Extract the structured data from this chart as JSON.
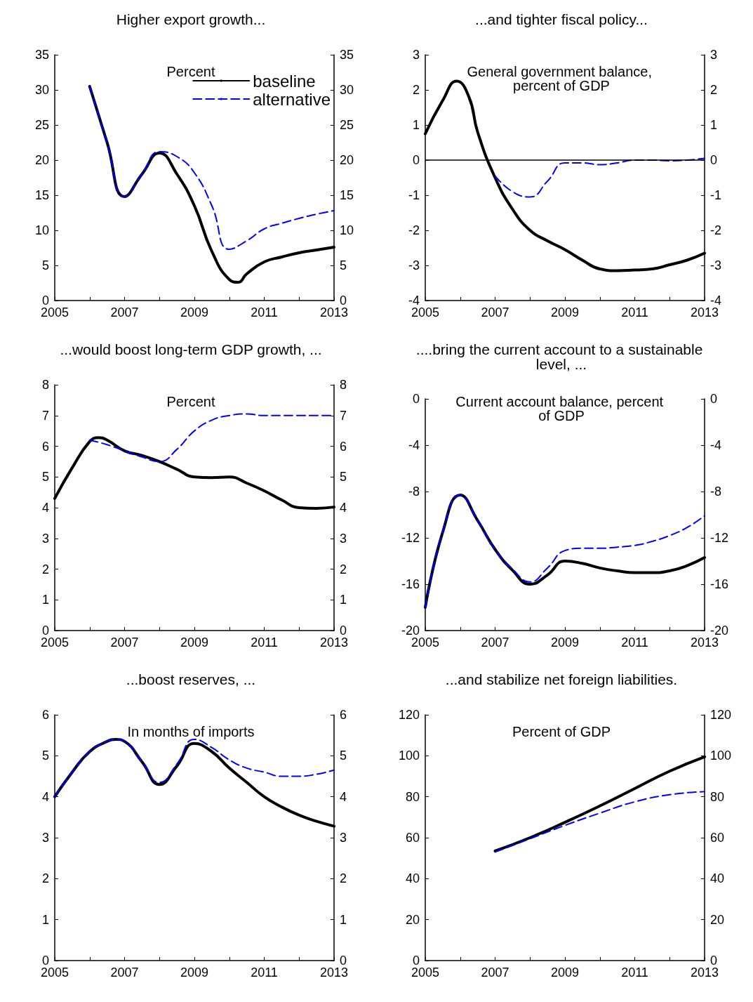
{
  "chart_data": [
    {
      "type": "line",
      "title": "Higher export growth...",
      "annotations": [
        "Percent"
      ],
      "legend": "top right",
      "grid": false,
      "xlim": [
        2005,
        2013
      ],
      "xticks": [
        2005,
        {
          "value": 2006,
          "label": null
        },
        2007,
        {
          "value": 2008,
          "label": null
        },
        2009,
        {
          "value": 2010,
          "label": null
        },
        2011,
        {
          "value": 2012,
          "label": null
        },
        2013
      ],
      "ylim": [
        0,
        35
      ],
      "yticks": [
        0,
        5,
        10,
        15,
        20,
        25,
        30,
        35
      ],
      "y2lim": [
        0,
        35
      ],
      "y2ticks": [
        0,
        5,
        10,
        15,
        20,
        25,
        30,
        35
      ],
      "series": [
        {
          "name": "baseline",
          "color": "#000000",
          "line_style": "solid",
          "x": [
            2006,
            2006.5,
            2007,
            2007.5,
            2008,
            2008.5,
            2009,
            2009.5,
            2010,
            2010.25,
            2010.5,
            2011,
            2011.5,
            2012,
            2012.5,
            2013
          ],
          "values": [
            30.5,
            22.5,
            14.8,
            18,
            21,
            18,
            13.5,
            7,
            3,
            2.6,
            3.8,
            5.5,
            6.2,
            6.8,
            7.2,
            7.6
          ]
        },
        {
          "name": "alternative",
          "color": "#0000ff",
          "line_style": "dashed",
          "x": [
            2006,
            2006.5,
            2007,
            2007.5,
            2008,
            2008.5,
            2009,
            2009.5,
            2010,
            2010.5,
            2011,
            2011.5,
            2012,
            2012.5,
            2013
          ],
          "values": [
            30.5,
            22.5,
            14.8,
            18,
            21.2,
            20.5,
            18.2,
            13.5,
            7.3,
            8.5,
            10.2,
            11,
            11.7,
            12.3,
            12.8
          ]
        }
      ]
    },
    {
      "type": "line",
      "title": "...and tighter fiscal policy...",
      "annotations": [
        "General government balance, percent of GDP"
      ],
      "grid": false,
      "xlim": [
        2005,
        2013
      ],
      "xticks": [
        2005,
        {
          "value": 2006,
          "label": null
        },
        2007,
        {
          "value": 2008,
          "label": null
        },
        2009,
        {
          "value": 2010,
          "label": null
        },
        2011,
        {
          "value": 2012,
          "label": null
        },
        2013
      ],
      "ylim": [
        -4,
        3
      ],
      "yticks": [
        -4,
        -3,
        -2,
        -1,
        0,
        1,
        2,
        3
      ],
      "y2lim": [
        -4,
        3
      ],
      "y2ticks": [
        -4,
        -3,
        -2,
        -1,
        0,
        1,
        2,
        3
      ],
      "ref_lines": [
        {
          "axis": "y",
          "value": 0,
          "color": "#000000"
        }
      ],
      "series": [
        {
          "color": "#000000",
          "line_style": "solid",
          "x": [
            2005,
            2005.5,
            2005.9,
            2006.25,
            2006.5,
            2007,
            2007.5,
            2008,
            2008.5,
            2009,
            2009.5,
            2010,
            2010.5,
            2011,
            2011.5,
            2012,
            2012.5,
            2013
          ],
          "values": [
            0.75,
            1.7,
            2.25,
            1.8,
            0.8,
            -0.5,
            -1.4,
            -2,
            -2.3,
            -2.55,
            -2.85,
            -3.1,
            -3.15,
            -3.13,
            -3.1,
            -2.98,
            -2.85,
            -2.65
          ]
        },
        {
          "color": "#0000ff",
          "line_style": "dashed",
          "x": [
            2007,
            2007.5,
            2008,
            2008.5,
            2009,
            2009.5,
            2010,
            2010.5,
            2011,
            2011.5,
            2012,
            2012.5,
            2013
          ],
          "values": [
            -0.45,
            -0.9,
            -1.05,
            -0.6,
            -0.08,
            -0.08,
            -0.13,
            -0.08,
            0,
            0,
            -0.02,
            0,
            0.05
          ]
        }
      ]
    },
    {
      "type": "line",
      "title": "...would boost long-term GDP growth, ...",
      "annotations": [
        "Percent"
      ],
      "grid": false,
      "xlim": [
        2005,
        2013
      ],
      "xticks": [
        2005,
        {
          "value": 2006,
          "label": null
        },
        2007,
        {
          "value": 2008,
          "label": null
        },
        2009,
        {
          "value": 2010,
          "label": null
        },
        2011,
        {
          "value": 2012,
          "label": null
        },
        2013
      ],
      "ylim": [
        0,
        8
      ],
      "yticks": [
        0,
        1,
        2,
        3,
        4,
        5,
        6,
        7,
        8
      ],
      "y2lim": [
        0,
        8
      ],
      "y2ticks": [
        0,
        1,
        2,
        3,
        4,
        5,
        6,
        7,
        8
      ],
      "series": [
        {
          "color": "#000000",
          "line_style": "solid",
          "x": [
            2005,
            2005.5,
            2006,
            2006.25,
            2006.5,
            2007,
            2007.5,
            2008,
            2008.5,
            2009,
            2009.5,
            2010,
            2010.5,
            2011,
            2011.5,
            2012,
            2012.5,
            2013
          ],
          "values": [
            4.3,
            5.3,
            6.15,
            6.28,
            6.2,
            5.85,
            5.7,
            5.5,
            5.25,
            5,
            4.98,
            5,
            4.8,
            4.55,
            4.25,
            4,
            3.98,
            4.02
          ]
        },
        {
          "color": "#0000ff",
          "line_style": "dashed",
          "x": [
            2006,
            2006.5,
            2007,
            2007.5,
            2008,
            2008.5,
            2009,
            2009.5,
            2010,
            2010.5,
            2011,
            2011.5,
            2012,
            2012.5,
            2013
          ],
          "values": [
            6.2,
            6.05,
            5.85,
            5.65,
            5.5,
            5.9,
            6.5,
            6.85,
            7,
            7.05,
            7,
            7,
            7,
            7,
            7
          ]
        }
      ]
    },
    {
      "type": "line",
      "title": "....bring the current account to a sustainable level, ...",
      "annotations": [
        "Current account balance, percent of GDP"
      ],
      "grid": false,
      "xlim": [
        2005,
        2013
      ],
      "xticks": [
        2005,
        {
          "value": 2006,
          "label": null
        },
        2007,
        {
          "value": 2008,
          "label": null
        },
        2009,
        {
          "value": 2010,
          "label": null
        },
        2011,
        {
          "value": 2012,
          "label": null
        },
        2013
      ],
      "ylim": [
        -20,
        0
      ],
      "yticks": [
        -20,
        -16,
        -12,
        -8,
        -4,
        0
      ],
      "y2lim": [
        -20,
        0
      ],
      "y2ticks": [
        -20,
        -16,
        -12,
        -8,
        -4,
        0
      ],
      "series": [
        {
          "color": "#000000",
          "line_style": "solid",
          "x": [
            2005,
            2005.5,
            2006,
            2006.5,
            2007,
            2007.5,
            2008,
            2008.5,
            2009,
            2009.5,
            2010,
            2010.5,
            2011,
            2011.5,
            2012,
            2012.5,
            2013
          ],
          "values": [
            -18,
            -11.5,
            -8.3,
            -10.5,
            -13,
            -14.8,
            -16,
            -15.2,
            -14,
            -14.2,
            -14.6,
            -14.85,
            -15,
            -15,
            -14.85,
            -14.4,
            -13.7
          ]
        },
        {
          "color": "#0000ff",
          "line_style": "dashed",
          "x": [
            2005,
            2005.5,
            2006,
            2006.5,
            2007,
            2007.5,
            2008,
            2008.5,
            2009,
            2009.5,
            2010,
            2010.5,
            2011,
            2011.5,
            2012,
            2012.5,
            2013
          ],
          "values": [
            -18,
            -11.5,
            -8.3,
            -10.5,
            -13,
            -14.7,
            -15.8,
            -14.6,
            -13.1,
            -12.9,
            -12.9,
            -12.8,
            -12.65,
            -12.3,
            -11.8,
            -11.1,
            -10.1
          ]
        }
      ]
    },
    {
      "type": "line",
      "title": "...boost reserves, ...",
      "annotations": [
        "In months of imports"
      ],
      "grid": false,
      "xlim": [
        2005,
        2013
      ],
      "xticks": [
        2005,
        {
          "value": 2006,
          "label": null
        },
        2007,
        {
          "value": 2008,
          "label": null
        },
        2009,
        {
          "value": 2010,
          "label": null
        },
        2011,
        {
          "value": 2012,
          "label": null
        },
        2013
      ],
      "ylim": [
        0,
        6
      ],
      "yticks": [
        0,
        1,
        2,
        3,
        4,
        5,
        6
      ],
      "y2lim": [
        0,
        6
      ],
      "y2ticks": [
        0,
        1,
        2,
        3,
        4,
        5,
        6
      ],
      "series": [
        {
          "color": "#000000",
          "line_style": "solid",
          "x": [
            2005,
            2005.5,
            2006,
            2006.5,
            2006.75,
            2007,
            2007.5,
            2008,
            2008.5,
            2009,
            2009.5,
            2010,
            2010.5,
            2011,
            2011.5,
            2012,
            2012.5,
            2013
          ],
          "values": [
            4,
            4.6,
            5.1,
            5.35,
            5.4,
            5.35,
            4.85,
            4.3,
            4.75,
            5.3,
            5.1,
            4.7,
            4.35,
            4,
            3.75,
            3.55,
            3.4,
            3.28
          ]
        },
        {
          "color": "#0000ff",
          "line_style": "dashed",
          "x": [
            2005,
            2005.5,
            2006,
            2006.5,
            2006.75,
            2007,
            2007.5,
            2008,
            2008.5,
            2009,
            2009.5,
            2010,
            2010.5,
            2011,
            2011.5,
            2012,
            2012.5,
            2013
          ],
          "values": [
            4,
            4.6,
            5.1,
            5.35,
            5.4,
            5.35,
            4.85,
            4.35,
            4.8,
            5.4,
            5.2,
            4.9,
            4.7,
            4.6,
            4.5,
            4.5,
            4.55,
            4.65
          ]
        }
      ]
    },
    {
      "type": "line",
      "title": "...and stabilize net foreign liabilities.",
      "annotations": [
        "Percent of GDP"
      ],
      "grid": false,
      "xlim": [
        2005,
        2013
      ],
      "xticks": [
        2005,
        {
          "value": 2006,
          "label": null
        },
        2007,
        {
          "value": 2008,
          "label": null
        },
        2009,
        {
          "value": 2010,
          "label": null
        },
        2011,
        {
          "value": 2012,
          "label": null
        },
        2013
      ],
      "ylim": [
        0,
        120
      ],
      "yticks": [
        0,
        20,
        40,
        60,
        80,
        100,
        120
      ],
      "y2lim": [
        0,
        120
      ],
      "y2ticks": [
        0,
        20,
        40,
        60,
        80,
        100,
        120
      ],
      "series": [
        {
          "color": "#000000",
          "line_style": "solid",
          "x": [
            2007,
            2008,
            2009,
            2010,
            2011,
            2012,
            2013
          ],
          "values": [
            53.5,
            60,
            67.5,
            75.5,
            84,
            92.5,
            99.5
          ]
        },
        {
          "color": "#0000ff",
          "line_style": "dashed",
          "x": [
            2007,
            2008,
            2009,
            2010,
            2011,
            2012,
            2013
          ],
          "values": [
            53,
            59.5,
            66,
            72,
            77.5,
            81,
            82.5
          ]
        }
      ]
    }
  ]
}
